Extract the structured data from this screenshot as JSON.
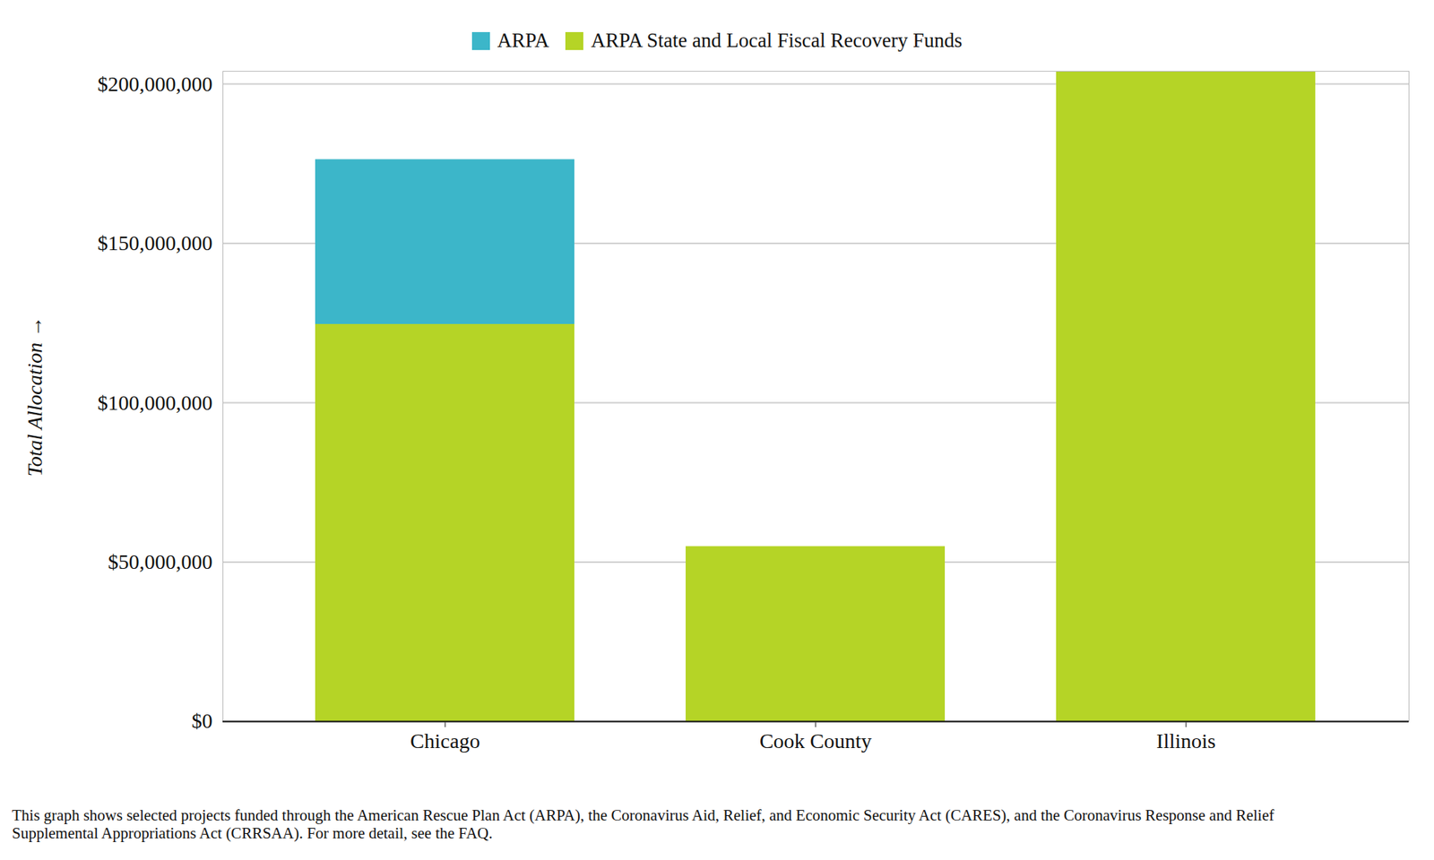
{
  "chart_data": {
    "type": "bar",
    "stacked": true,
    "caption": "This graph shows selected projects funded through the American Rescue Plan Act (ARPA), the Coronavirus Aid, Relief, and Economic Security Act (CARES), and the Coronavirus Response and Relief Supplemental Appropriations Act (CRRSAA). For more detail, see the FAQ.",
    "y_label": "Total Allocation",
    "categories": [
      "Chicago",
      "Cook County",
      "Illinois"
    ],
    "series": [
      {
        "name": "ARPA",
        "color": "#3cb6c9",
        "values": [
          51700000,
          null,
          null
        ]
      },
      {
        "name": "ARPA State and Local Fiscal Recovery Funds",
        "color": "#b5d426",
        "values": [
          124600000,
          54900000,
          204000000
        ]
      }
    ],
    "ylim": [
      0,
      204000000
    ],
    "yticks": [
      {
        "value": 0,
        "label": "$0"
      },
      {
        "value": 50000000,
        "label": "$50,000,000"
      },
      {
        "value": 100000000,
        "label": "$100,000,000"
      },
      {
        "value": 150000000,
        "label": "$150,000,000"
      },
      {
        "value": 200000000,
        "label": "$200,000,000"
      }
    ],
    "grid": true,
    "legend": "top"
  }
}
